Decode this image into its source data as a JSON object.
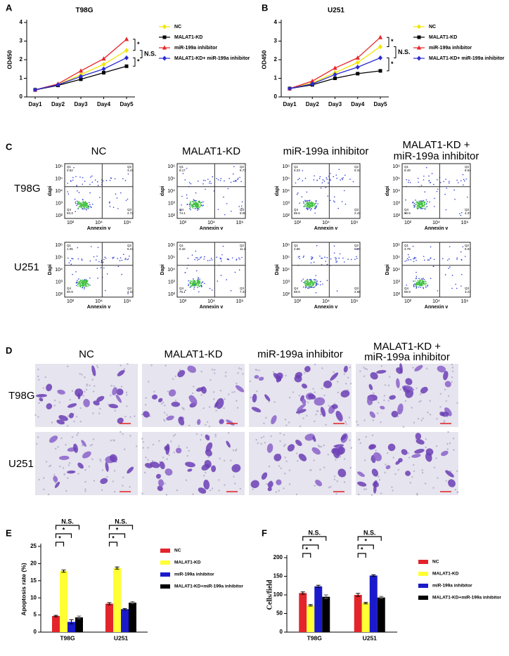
{
  "chart_data": [
    {
      "type": "line",
      "panel": "A",
      "title": "T98G",
      "y_label": "OD450",
      "categories": [
        "Day1",
        "Day2",
        "Day3",
        "Day4",
        "Day5"
      ],
      "ylim": [
        0,
        4
      ],
      "yticks": [
        0,
        1,
        2,
        3,
        4
      ],
      "series": [
        {
          "name": "NC",
          "color": "#f2e600",
          "values": [
            0.38,
            0.65,
            1.2,
            1.75,
            2.5
          ]
        },
        {
          "name": "MALAT1-KD",
          "color": "#000000",
          "values": [
            0.38,
            0.62,
            0.95,
            1.3,
            1.65
          ]
        },
        {
          "name": "miR-199a inhibitor",
          "color": "#e8262a",
          "values": [
            0.38,
            0.7,
            1.4,
            2.05,
            3.1
          ]
        },
        {
          "name": "MALAT1-KD+ miR-199a inhibitor",
          "color": "#2b2bd0",
          "values": [
            0.38,
            0.65,
            1.1,
            1.5,
            2.1
          ]
        }
      ],
      "annotations": [
        "*",
        "N.S.",
        "*"
      ]
    },
    {
      "type": "line",
      "panel": "B",
      "title": "U251",
      "y_label": "OD450",
      "categories": [
        "Day1",
        "Day2",
        "Day3",
        "Day4",
        "Day5"
      ],
      "ylim": [
        0,
        4
      ],
      "yticks": [
        0,
        1,
        2,
        3,
        4
      ],
      "series": [
        {
          "name": "NC",
          "color": "#f2e600",
          "values": [
            0.45,
            0.75,
            1.3,
            1.85,
            2.7
          ]
        },
        {
          "name": "MALAT1-KD",
          "color": "#000000",
          "values": [
            0.45,
            0.65,
            1.0,
            1.25,
            1.4
          ]
        },
        {
          "name": "miR-199a inhibitor",
          "color": "#e8262a",
          "values": [
            0.45,
            0.85,
            1.55,
            2.1,
            3.2
          ]
        },
        {
          "name": "MALAT1-KD+ miR-199a inhibitor",
          "color": "#2b2bd0",
          "values": [
            0.45,
            0.7,
            1.2,
            1.6,
            2.1
          ]
        }
      ],
      "annotations": [
        "*",
        "N.S.",
        "*"
      ]
    },
    {
      "type": "bar",
      "panel": "E",
      "y_label": "Apoptosis rate (%)",
      "categories": [
        "T98G",
        "U251"
      ],
      "ylim": [
        0,
        25
      ],
      "yticks": [
        0,
        5,
        10,
        15,
        20,
        25
      ],
      "series": [
        {
          "name": "NC",
          "color": "#e3242b",
          "values": [
            4.7,
            8.3
          ],
          "errors": [
            0.2,
            0.3
          ]
        },
        {
          "name": "MALAT1-KD",
          "color": "#ffff33",
          "values": [
            17.8,
            18.7
          ],
          "errors": [
            0.3,
            0.3
          ]
        },
        {
          "name": "miR-199a inhibitor",
          "color": "#1a1acc",
          "values": [
            3.0,
            6.7
          ],
          "errors": [
            0.6,
            0.2
          ]
        },
        {
          "name": "MALAT1-KD+miR-199a inhibitor",
          "color": "#000000",
          "values": [
            4.3,
            8.6
          ],
          "errors": [
            0.4,
            0.3
          ]
        }
      ],
      "annotations": [
        [
          "N.S.",
          "*",
          "*"
        ],
        [
          "N.S.",
          "*",
          "*"
        ]
      ]
    },
    {
      "type": "bar",
      "panel": "F",
      "y_label": "Cells/field",
      "categories": [
        "T98G",
        "U251"
      ],
      "ylim": [
        0,
        200
      ],
      "yticks": [
        0,
        50,
        100,
        150,
        200
      ],
      "series": [
        {
          "name": "NC",
          "color": "#e3242b",
          "values": [
            105,
            100
          ],
          "errors": [
            3,
            4
          ]
        },
        {
          "name": "MALAT1-KD",
          "color": "#ffff33",
          "values": [
            72,
            78
          ],
          "errors": [
            2,
            2
          ]
        },
        {
          "name": "miR-199a inhibitor",
          "color": "#1a1acc",
          "values": [
            123,
            152
          ],
          "errors": [
            3,
            2
          ]
        },
        {
          "name": "MALAT1-KD+miR-199a inhibitor",
          "color": "#000000",
          "values": [
            95,
            93
          ],
          "errors": [
            5,
            3
          ]
        }
      ],
      "annotations": [
        [
          "N.S.",
          "*",
          "*"
        ],
        [
          "N.S.",
          "*",
          "*"
        ]
      ]
    }
  ],
  "flow_cytometry": {
    "label": "C",
    "columns": [
      [
        "NC"
      ],
      [
        "MALAT1-KD"
      ],
      [
        "miR-199a inhibitor"
      ],
      [
        "MALAT1-KD +",
        "miR-199a inhibitor"
      ]
    ],
    "rows": [
      "T98G",
      "U251"
    ],
    "y_labels": [
      "dapi",
      "Dapi"
    ],
    "x_label": "Annexin v",
    "x_ticks": [
      "10²",
      "10⁴",
      "10⁶"
    ],
    "y_ticks": [
      "10⁶",
      "10⁵",
      "10⁴",
      "10³",
      "10²"
    ],
    "quadrant_names": [
      "Q1",
      "Q2",
      "Q3",
      "Q4"
    ],
    "quadrants": [
      [
        [
          "0.52",
          "3.41",
          "2.72",
          "93.3"
        ],
        [
          "8.17",
          "9.73",
          "8.00",
          "74.1"
        ],
        [
          "5.23",
          "6.34",
          "2.43",
          "85.6"
        ],
        [
          "8.49",
          "6.54",
          "4.37",
          "80.5"
        ]
      ],
      [
        [
          "1.05",
          "5.21",
          "2.31",
          "90.9"
        ],
        [
          "6.32",
          "11.2",
          "7.37",
          "75.1"
        ],
        [
          "2.66",
          "5.90",
          "2.86",
          "88.6"
        ],
        [
          "3.79",
          "6.03",
          "3.27",
          "89.9"
        ]
      ]
    ]
  },
  "migration": {
    "label": "D",
    "columns": [
      [
        "NC"
      ],
      [
        "MALAT1-KD"
      ],
      [
        "miR-199a inhibitor"
      ],
      [
        "MALAT1-KD +",
        "miR-199a inhibitor"
      ]
    ],
    "rows": [
      "T98G",
      "U251"
    ]
  }
}
